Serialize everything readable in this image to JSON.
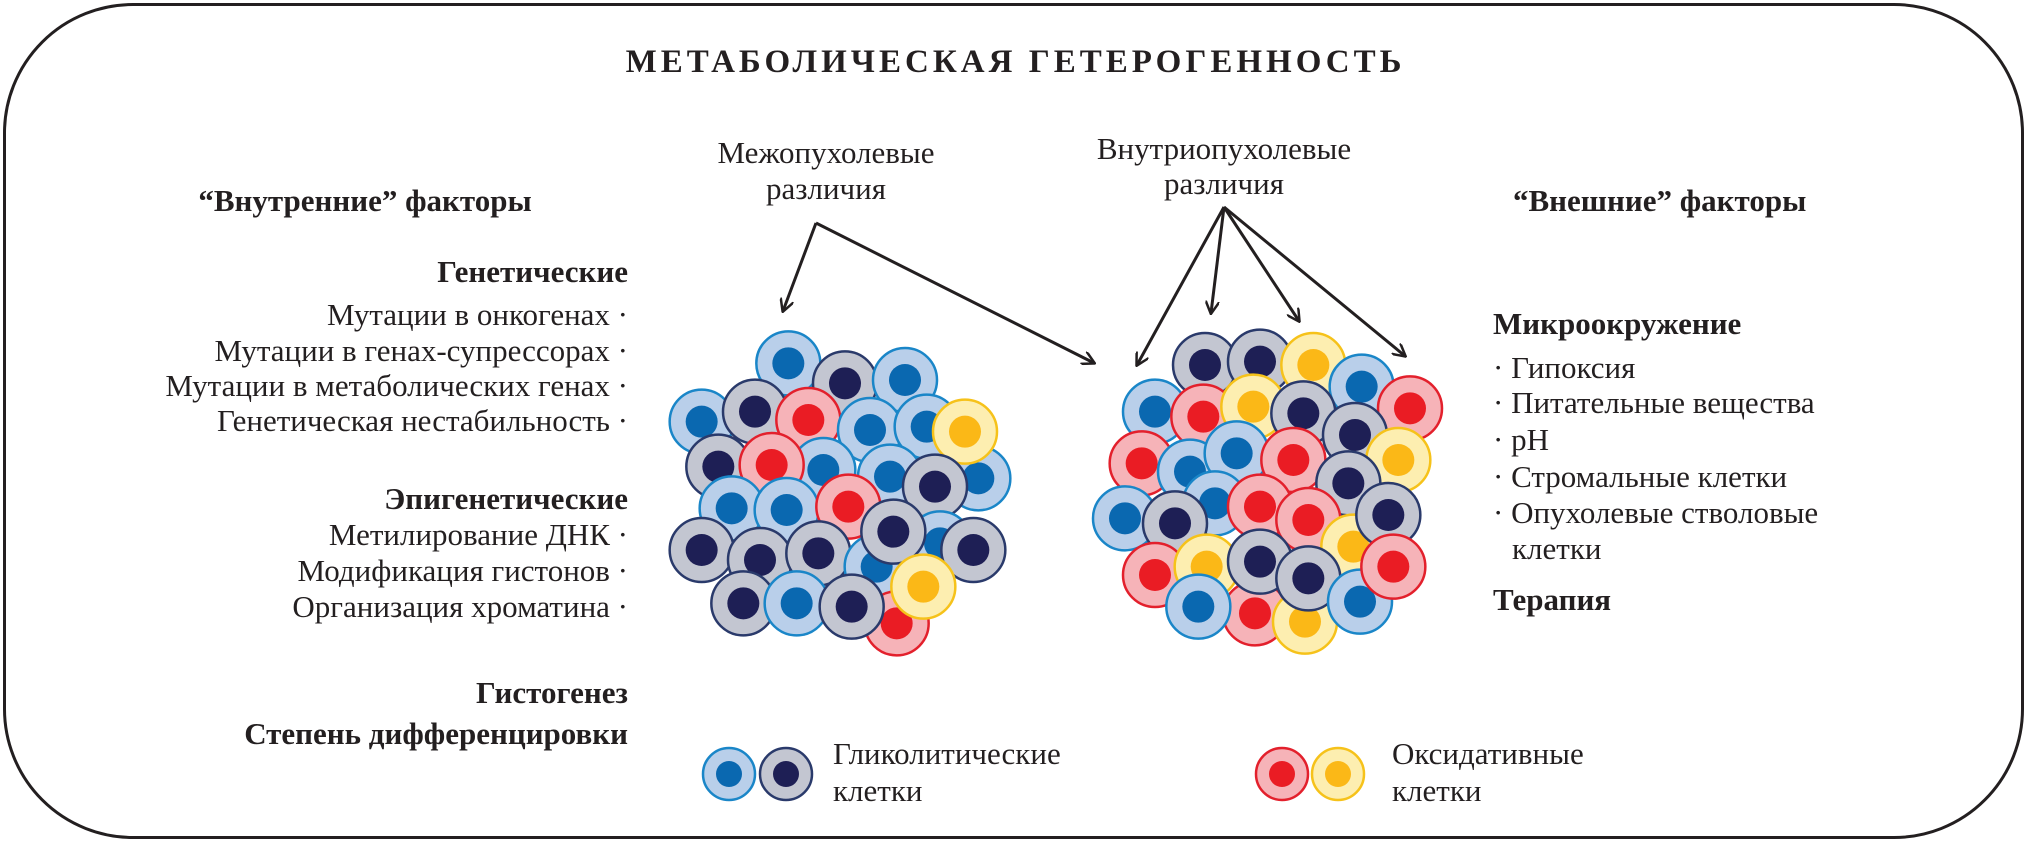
{
  "title": "МЕТАБОЛИЧЕСКАЯ ГЕТЕРОГЕННОСТЬ",
  "arrows": {
    "inter": [
      "Межопухолевые",
      "различия"
    ],
    "intra": [
      "Внутриопухолевые",
      "различия"
    ]
  },
  "internal": {
    "header": "“Внутренние” факторы",
    "genetic": {
      "title": "Генетические",
      "items": [
        "Мутации в онкогенах ·",
        "Мутации в генах-супрессорах ·",
        "Мутации в метаболических генах ·",
        "Генетическая нестабильность ·"
      ]
    },
    "epigenetic": {
      "title": "Эпигенетические",
      "items": [
        "Метилирование ДНК ·",
        "Модификация гистонов ·",
        "Организация хроматина ·"
      ]
    },
    "histogenesis": "Гистогенез",
    "differentiation": "Степень дифференцировки"
  },
  "external": {
    "header": "“Внешние” факторы",
    "microenv": {
      "title": "Микроокружение",
      "items": [
        "· Гипоксия",
        "· Питательные вещества",
        "· pH",
        "· Стромальные клетки",
        "· Опухолевые стволовые",
        "клетки"
      ]
    },
    "therapy": "Терапия"
  },
  "legend": {
    "glycolytic": [
      "Гликолитические",
      "клетки"
    ],
    "oxidative": [
      "Оксидативные",
      "клетки"
    ]
  },
  "colors": {
    "blue": {
      "outer": "#b9cfea",
      "rim": "#1a86c8",
      "nucleus": "#0a68b0"
    },
    "gray": {
      "outer": "#c3c6d1",
      "rim": "#2a3a6b",
      "nucleus": "#1e1f55"
    },
    "red": {
      "outer": "#f6b3b8",
      "rim": "#e3202c",
      "nucleus": "#ea1c24"
    },
    "yellow": {
      "outer": "#fdeeb0",
      "rim": "#f6c21a",
      "nucleus": "#fbb817"
    },
    "ink": "#231f20"
  }
}
